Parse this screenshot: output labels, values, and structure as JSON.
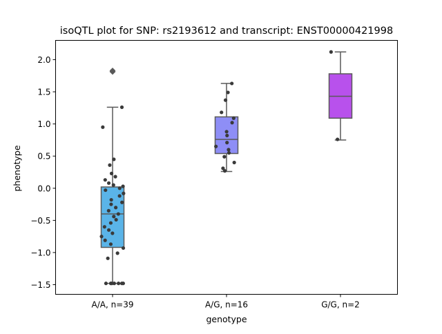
{
  "chart_data": {
    "type": "box",
    "title": "isoQTL plot for SNP: rs2193612 and transcript: ENST00000421998",
    "xlabel": "genotype",
    "ylabel": "phenotype",
    "ylim": [
      -1.65,
      2.3
    ],
    "yticks": [
      -1.5,
      -1.0,
      -0.5,
      0.0,
      0.5,
      1.0,
      1.5,
      2.0
    ],
    "ytick_labels": [
      "−1.5",
      "−1.0",
      "−0.5",
      "0.0",
      "0.5",
      "1.0",
      "1.5",
      "2.0"
    ],
    "categories": [
      "A/A, n=39",
      "A/G, n=16",
      "G/G, n=2"
    ],
    "grid": false,
    "legend": "none",
    "boxes": [
      {
        "category": "A/A, n=39",
        "color": "#5ab4e8",
        "q1": -0.92,
        "median": -0.4,
        "q3": 0.02,
        "whisker_low": -1.48,
        "whisker_high": 1.26,
        "outliers": [
          1.82,
          1.81,
          1.83
        ]
      },
      {
        "category": "A/G, n=16",
        "color": "#8e8ef6",
        "q1": 0.54,
        "median": 0.76,
        "q3": 1.11,
        "whisker_low": 0.26,
        "whisker_high": 1.63,
        "outliers": []
      },
      {
        "category": "G/G, n=2",
        "color": "#b851ec",
        "q1": 1.09,
        "median": 1.43,
        "q3": 1.78,
        "whisker_low": 0.75,
        "whisker_high": 2.12,
        "outliers": []
      }
    ],
    "points": [
      {
        "category": "A/A, n=39",
        "values": [
          1.26,
          0.95,
          0.45,
          0.36,
          0.23,
          0.18,
          0.13,
          0.08,
          0.05,
          0.03,
          0.0,
          -0.03,
          -0.08,
          -0.12,
          -0.18,
          -0.22,
          -0.25,
          -0.3,
          -0.35,
          -0.4,
          -0.44,
          -0.49,
          -0.54,
          -0.6,
          -0.65,
          -0.7,
          -0.75,
          -0.81,
          -0.87,
          -0.93,
          -1.01,
          -1.09,
          -1.48,
          -1.48,
          -1.48,
          -1.48,
          -1.48,
          -1.48,
          -1.48
        ]
      },
      {
        "category": "A/G, n=16",
        "values": [
          1.63,
          1.49,
          1.37,
          1.18,
          1.09,
          1.02,
          0.88,
          0.82,
          0.71,
          0.65,
          0.6,
          0.55,
          0.49,
          0.4,
          0.31,
          0.27
        ]
      },
      {
        "category": "G/G, n=2",
        "values": [
          2.12,
          0.76
        ]
      }
    ],
    "point_color": "#3a3a3a",
    "line_color": "#595959"
  }
}
